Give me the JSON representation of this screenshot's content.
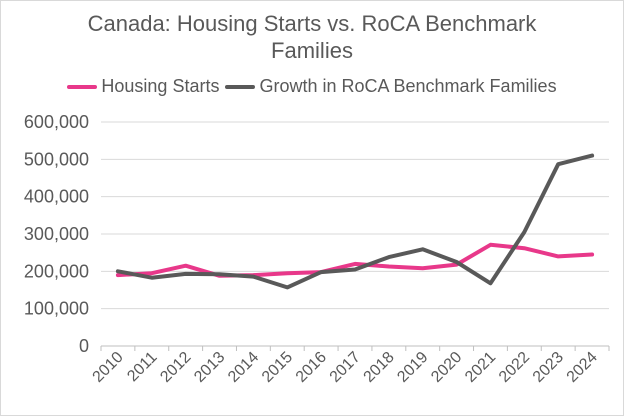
{
  "chart_data": {
    "type": "line",
    "title": "Canada: Housing Starts vs. RoCA Benchmark Families",
    "title_lines": [
      "Canada: Housing Starts vs. RoCA Benchmark",
      "Families"
    ],
    "categories": [
      "2010",
      "2011",
      "2012",
      "2013",
      "2014",
      "2015",
      "2016",
      "2017",
      "2018",
      "2019",
      "2020",
      "2021",
      "2022",
      "2023",
      "2024"
    ],
    "series": [
      {
        "name": "Housing Starts",
        "color": "#e8388a",
        "values": [
          190000,
          195000,
          215000,
          188000,
          190000,
          195000,
          198000,
          220000,
          213000,
          208000,
          218000,
          271000,
          262000,
          240000,
          245000
        ]
      },
      {
        "name": "Growth in RoCA Benchmark Families",
        "color": "#595959",
        "values": [
          200000,
          183000,
          193000,
          192000,
          186000,
          157000,
          198000,
          205000,
          238000,
          259000,
          225000,
          168000,
          305000,
          487000,
          510000
        ]
      }
    ],
    "ylim": [
      0,
      600000
    ],
    "yticks": [
      0,
      100000,
      200000,
      300000,
      400000,
      500000,
      600000
    ],
    "ytick_labels": [
      "0",
      "100,000",
      "200,000",
      "300,000",
      "400,000",
      "500,000",
      "600,000"
    ],
    "xlabel": "",
    "ylabel": "",
    "grid": true,
    "legend_position": "top"
  }
}
